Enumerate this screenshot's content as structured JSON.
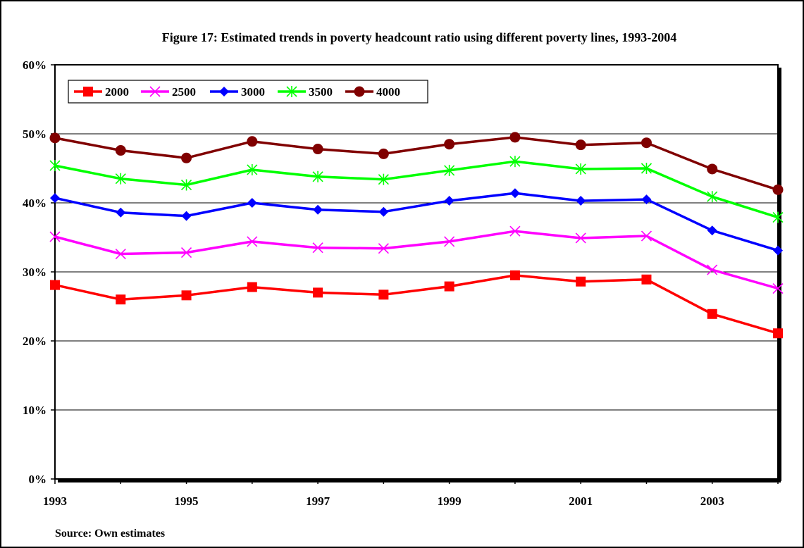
{
  "chart_data": {
    "type": "line",
    "title": "Figure 17: Estimated trends in poverty headcount ratio using different poverty lines, 1993-2004",
    "xlabel": "",
    "ylabel": "",
    "x": [
      1993,
      1994,
      1995,
      1996,
      1997,
      1998,
      1999,
      2000,
      2001,
      2002,
      2003,
      2004
    ],
    "x_tick_labels": [
      "1993",
      "1995",
      "1997",
      "1999",
      "2001",
      "2003"
    ],
    "y_tick_labels": [
      "0%",
      "10%",
      "20%",
      "30%",
      "40%",
      "50%",
      "60%"
    ],
    "ylim": [
      0,
      60
    ],
    "grid": "horizontal",
    "legend_position": "top-left",
    "source": "Source: Own estimates",
    "series": [
      {
        "name": "2000",
        "color": "#ff0000",
        "marker": "square",
        "values": [
          28.1,
          26.0,
          26.6,
          27.8,
          27.0,
          26.7,
          27.9,
          29.5,
          28.6,
          28.9,
          23.9,
          21.1
        ]
      },
      {
        "name": "2500",
        "color": "#ff00ff",
        "marker": "x",
        "values": [
          35.1,
          32.6,
          32.8,
          34.4,
          33.5,
          33.4,
          34.4,
          35.9,
          34.9,
          35.2,
          30.3,
          27.6
        ]
      },
      {
        "name": "3000",
        "color": "#0000ff",
        "marker": "diamond",
        "values": [
          40.7,
          38.6,
          38.1,
          40.0,
          39.0,
          38.7,
          40.3,
          41.4,
          40.3,
          40.5,
          36.0,
          33.1
        ]
      },
      {
        "name": "3500",
        "color": "#00ff00",
        "marker": "asterisk",
        "values": [
          45.4,
          43.5,
          42.6,
          44.8,
          43.8,
          43.4,
          44.7,
          46.0,
          44.9,
          45.0,
          40.9,
          37.9
        ]
      },
      {
        "name": "4000",
        "color": "#800000",
        "marker": "circle",
        "values": [
          49.4,
          47.6,
          46.5,
          48.9,
          47.8,
          47.1,
          48.5,
          49.5,
          48.4,
          48.7,
          44.9,
          41.9
        ]
      }
    ]
  }
}
